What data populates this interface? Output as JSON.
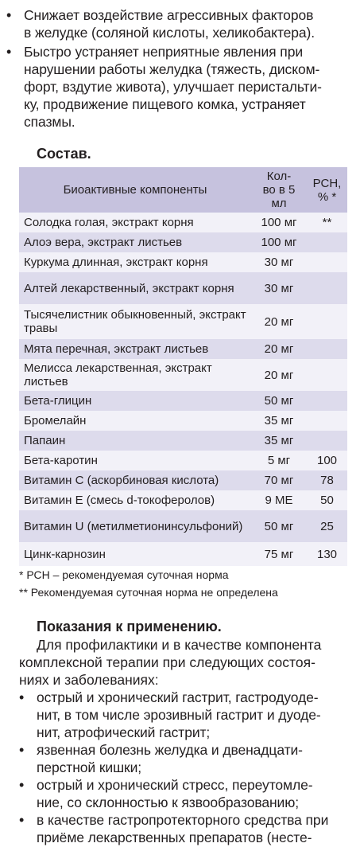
{
  "top_bullets": [
    {
      "lines": [
        "Снижает воздействие агрессивных факторов",
        "в желудке (соляной кислоты, хеликобактера)."
      ]
    },
    {
      "lines": [
        "Быстро устраняет неприятные явления при",
        "нарушении работы желудка (тяжесть, диском-",
        "форт, вздутие живота), улучшает перистальти-",
        "ку, продвижение пищевого комка, устраняет",
        "спазмы."
      ]
    }
  ],
  "composition_heading": "Состав.",
  "table": {
    "headers": [
      "Биоактивные компоненты",
      "Кол-во в 5 мл",
      "РСН, % *"
    ],
    "header_col2_lines": [
      "Кол-",
      "во в 5",
      "мл"
    ],
    "header_col3_lines": [
      "РСН,",
      "% *"
    ],
    "rows": [
      {
        "name": "Солодка голая, экстракт корня",
        "amount": "100 мг",
        "rsn": "**"
      },
      {
        "name": "Алоэ вера, экстракт листьев",
        "amount": "100 мг",
        "rsn": ""
      },
      {
        "name": "Куркума длинная, экстракт корня",
        "amount": "30 мг",
        "rsn": ""
      },
      {
        "name": "Алтей лекарственный, экстракт корня",
        "amount": "30 мг",
        "rsn": ""
      },
      {
        "name": "Тысячелистник обыкновенный, экстракт травы",
        "amount": "20 мг",
        "rsn": ""
      },
      {
        "name": "Мята перечная, экстракт листьев",
        "amount": "20 мг",
        "rsn": ""
      },
      {
        "name": "Мелисса лекарственная, экстракт листьев",
        "amount": "20 мг",
        "rsn": ""
      },
      {
        "name": "Бета-глицин",
        "amount": "50 мг",
        "rsn": ""
      },
      {
        "name": "Бромелайн",
        "amount": "35 мг",
        "rsn": ""
      },
      {
        "name": "Папаин",
        "amount": "35 мг",
        "rsn": ""
      },
      {
        "name": "Бета-каротин",
        "amount": "5 мг",
        "rsn": "100"
      },
      {
        "name": "Витамин С (аскорбиновая кислота)",
        "amount": "70 мг",
        "rsn": "78"
      },
      {
        "name": "Витамин Е (смесь d-токоферолов)",
        "amount": "9 МЕ",
        "rsn": "50"
      },
      {
        "name": "Витамин U (метилметионинсульфоний)",
        "amount": "50 мг",
        "rsn": "25"
      },
      {
        "name": "Цинк-карнозин",
        "amount": "75 мг",
        "rsn": "130"
      }
    ]
  },
  "footnotes": [
    "* РСН – рекомендуемая суточная норма",
    "** Рекомендуемая суточная норма не определена"
  ],
  "indications_heading": "Показания к применению.",
  "indications_intro_lines": [
    "Для профилактики и в качестве компонента",
    "комплексной терапии при следующих состоя-",
    "ниях и заболеваниях:"
  ],
  "indication_bullets": [
    {
      "lines": [
        "острый и хронический гастрит, гастродуоде-",
        "нит, в том числе эрозивный гастрит и дуоде-",
        "нит, атрофический гастрит;"
      ]
    },
    {
      "lines": [
        "язвенная болезнь желудка и двенадцати-",
        "перстной кишки;"
      ]
    },
    {
      "lines": [
        "острый и хронический стресс, переутомле-",
        "ние, со склонностью к язвообразованию;"
      ]
    },
    {
      "lines": [
        "в качестве гастропротекторного средства при",
        "приёме лекарственных препаратов (несте-"
      ]
    }
  ],
  "colors": {
    "header_bg": "#c6c2de",
    "row_dark": "#dddbec",
    "row_light": "#f2f1f8",
    "text": "#231f20"
  }
}
